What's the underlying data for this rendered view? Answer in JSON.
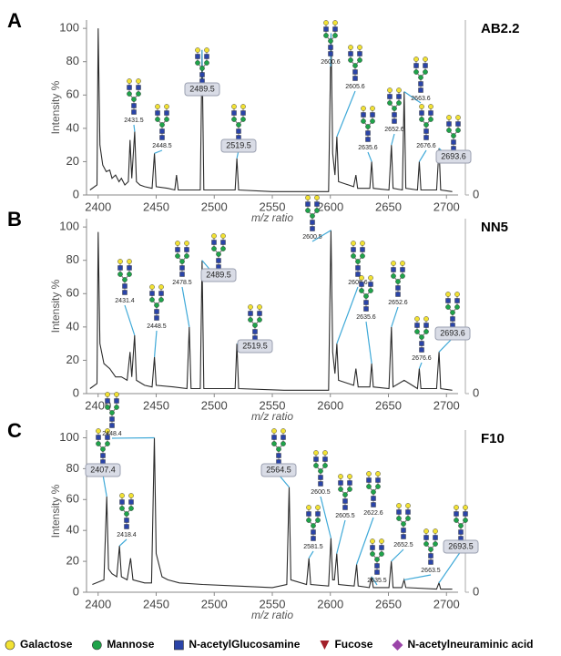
{
  "chart_data": [
    {
      "type": "line",
      "panel": "A",
      "name": "AB2.2",
      "xlabel": "m/z ratio",
      "ylabel": "Intensity %",
      "xlim": [
        2390,
        2710
      ],
      "ylim": [
        0,
        105
      ],
      "xticks": [
        2400,
        2450,
        2500,
        2550,
        2600,
        2650,
        2700
      ],
      "yticks": [
        0,
        20,
        40,
        60,
        80,
        100
      ],
      "y2lim": [
        0,
        105
      ],
      "y2ticks": [
        0
      ],
      "color": "#2b2b2b",
      "x": [
        2393,
        2399,
        2400,
        2401.5,
        2404,
        2407,
        2410,
        2412,
        2415,
        2418,
        2420,
        2423,
        2426,
        2427.5,
        2429,
        2431.5,
        2433,
        2436,
        2440,
        2446.5,
        2448.5,
        2450,
        2460,
        2466,
        2467.5,
        2469,
        2480,
        2488,
        2489.5,
        2491,
        2505,
        2518,
        2519.5,
        2521,
        2550,
        2580,
        2598.5,
        2600.6,
        2602,
        2604,
        2605.6,
        2607,
        2620,
        2622,
        2623.5,
        2634,
        2635.6,
        2637,
        2650.5,
        2652.6,
        2654,
        2662,
        2663.6,
        2665,
        2675,
        2676.6,
        2678,
        2691.5,
        2693.6,
        2695,
        2705
      ],
      "values": [
        3,
        6,
        100,
        30,
        18,
        14,
        15,
        10,
        12,
        8,
        10,
        6,
        8,
        33,
        10,
        38,
        8,
        6,
        5,
        4,
        25,
        5,
        4,
        3,
        12,
        3,
        3,
        3,
        87,
        3,
        3,
        3,
        22,
        3,
        2,
        2,
        2,
        97,
        25,
        12,
        35,
        8,
        5,
        12,
        4,
        4,
        20,
        4,
        3,
        30,
        4,
        3,
        62,
        4,
        3,
        20,
        3,
        3,
        28,
        3,
        2
      ],
      "annotations": [
        {
          "text": "2431.5"
        },
        {
          "text": "2448.5"
        },
        {
          "text": "2489.5",
          "boxed": true
        },
        {
          "text": "2519.5",
          "boxed": true
        },
        {
          "text": "2600.6"
        },
        {
          "text": "2605.6"
        },
        {
          "text": "2635.6"
        },
        {
          "text": "2652.6"
        },
        {
          "text": "2663.6"
        },
        {
          "text": "2676.6"
        },
        {
          "text": "2693.6",
          "boxed": true
        }
      ]
    },
    {
      "type": "line",
      "panel": "B",
      "name": "NN5",
      "xlabel": "m/z ratio",
      "ylabel": "Intensity %",
      "xlim": [
        2390,
        2710
      ],
      "ylim": [
        0,
        105
      ],
      "xticks": [
        2400,
        2450,
        2500,
        2550,
        2600,
        2650,
        2700
      ],
      "yticks": [
        0,
        20,
        40,
        60,
        80,
        100
      ],
      "y2lim": [
        0,
        105
      ],
      "y2ticks": [
        0
      ],
      "color": "#2b2b2b",
      "x": [
        2393,
        2399,
        2400,
        2401.5,
        2405,
        2410,
        2415,
        2420,
        2425,
        2427.5,
        2429,
        2431.4,
        2433,
        2440,
        2446.5,
        2448.5,
        2450,
        2465,
        2476.5,
        2478.5,
        2480,
        2488,
        2489.5,
        2491,
        2518,
        2519.5,
        2521,
        2560,
        2598.5,
        2600.5,
        2602,
        2604,
        2605.6,
        2607,
        2620,
        2622,
        2624,
        2634,
        2635.6,
        2637,
        2650.5,
        2652.6,
        2654,
        2663.6,
        2675,
        2676.6,
        2678,
        2691.5,
        2693.6,
        2695,
        2705
      ],
      "values": [
        3,
        6,
        97,
        30,
        18,
        15,
        10,
        10,
        8,
        25,
        10,
        35,
        8,
        5,
        4,
        22,
        5,
        4,
        3,
        40,
        3,
        3,
        80,
        3,
        3,
        30,
        3,
        2,
        2,
        98,
        25,
        12,
        30,
        8,
        5,
        15,
        4,
        4,
        18,
        4,
        3,
        40,
        4,
        8,
        3,
        15,
        3,
        3,
        25,
        3,
        2
      ],
      "annotations": [
        {
          "text": "2431.4"
        },
        {
          "text": "2448.5"
        },
        {
          "text": "2478.5"
        },
        {
          "text": "2489.5",
          "boxed": true
        },
        {
          "text": "2519.5",
          "boxed": true
        },
        {
          "text": "2600.5"
        },
        {
          "text": "2605.6"
        },
        {
          "text": "2635.6"
        },
        {
          "text": "2652.6"
        },
        {
          "text": "2676.6"
        },
        {
          "text": "2693.6",
          "boxed": true
        }
      ]
    },
    {
      "type": "line",
      "panel": "C",
      "name": "F10",
      "xlabel": "m/z ratio",
      "ylabel": "Intensity %",
      "xlim": [
        2390,
        2710
      ],
      "ylim": [
        0,
        105
      ],
      "xticks": [
        2400,
        2450,
        2500,
        2550,
        2600,
        2650,
        2700
      ],
      "yticks": [
        0,
        20,
        40,
        60,
        80,
        100
      ],
      "y2lim": [
        0,
        105
      ],
      "y2ticks": [
        0
      ],
      "color": "#2b2b2b",
      "x": [
        2395,
        2405,
        2407.4,
        2409,
        2412,
        2416,
        2418.4,
        2420,
        2425,
        2428,
        2430,
        2440,
        2446,
        2448.4,
        2450,
        2455,
        2460,
        2470,
        2490,
        2520,
        2550,
        2562.5,
        2564.5,
        2566,
        2579.5,
        2581.5,
        2583,
        2598.5,
        2600.5,
        2602,
        2603.5,
        2605.5,
        2607,
        2620.5,
        2622.6,
        2624,
        2633.5,
        2635.5,
        2637,
        2650.5,
        2652.5,
        2654,
        2661.5,
        2663.5,
        2665,
        2691.5,
        2693.5,
        2695,
        2705
      ],
      "values": [
        5,
        8,
        62,
        15,
        12,
        10,
        30,
        10,
        8,
        22,
        8,
        6,
        6,
        100,
        25,
        10,
        8,
        6,
        5,
        4,
        3,
        5,
        68,
        8,
        5,
        22,
        5,
        4,
        35,
        8,
        8,
        25,
        5,
        4,
        18,
        4,
        3,
        10,
        3,
        3,
        20,
        3,
        3,
        8,
        3,
        2,
        6,
        2,
        2
      ],
      "annotations": [
        {
          "text": "2407.4",
          "boxed": true
        },
        {
          "text": "2448.4"
        },
        {
          "text": "2418.4"
        },
        {
          "text": "2564.5",
          "boxed": true
        },
        {
          "text": "2581.5"
        },
        {
          "text": "2600.5"
        },
        {
          "text": "2605.5"
        },
        {
          "text": "2622.6"
        },
        {
          "text": "2635.5"
        },
        {
          "text": "2652.5"
        },
        {
          "text": "2663.5"
        },
        {
          "text": "2693.5",
          "boxed": true
        }
      ]
    }
  ],
  "legend": [
    {
      "name": "Galactose",
      "shape": "circle",
      "color": "#f2e234"
    },
    {
      "name": "Mannose",
      "shape": "circle",
      "color": "#1fa34a"
    },
    {
      "name": "N-acetylGlucosamine",
      "shape": "square",
      "color": "#2a44a8"
    },
    {
      "name": "Fucose",
      "shape": "triangle",
      "color": "#a3202a"
    },
    {
      "name": "N-acetylneuraminic acid",
      "shape": "diamond",
      "color": "#9a44a8"
    }
  ]
}
